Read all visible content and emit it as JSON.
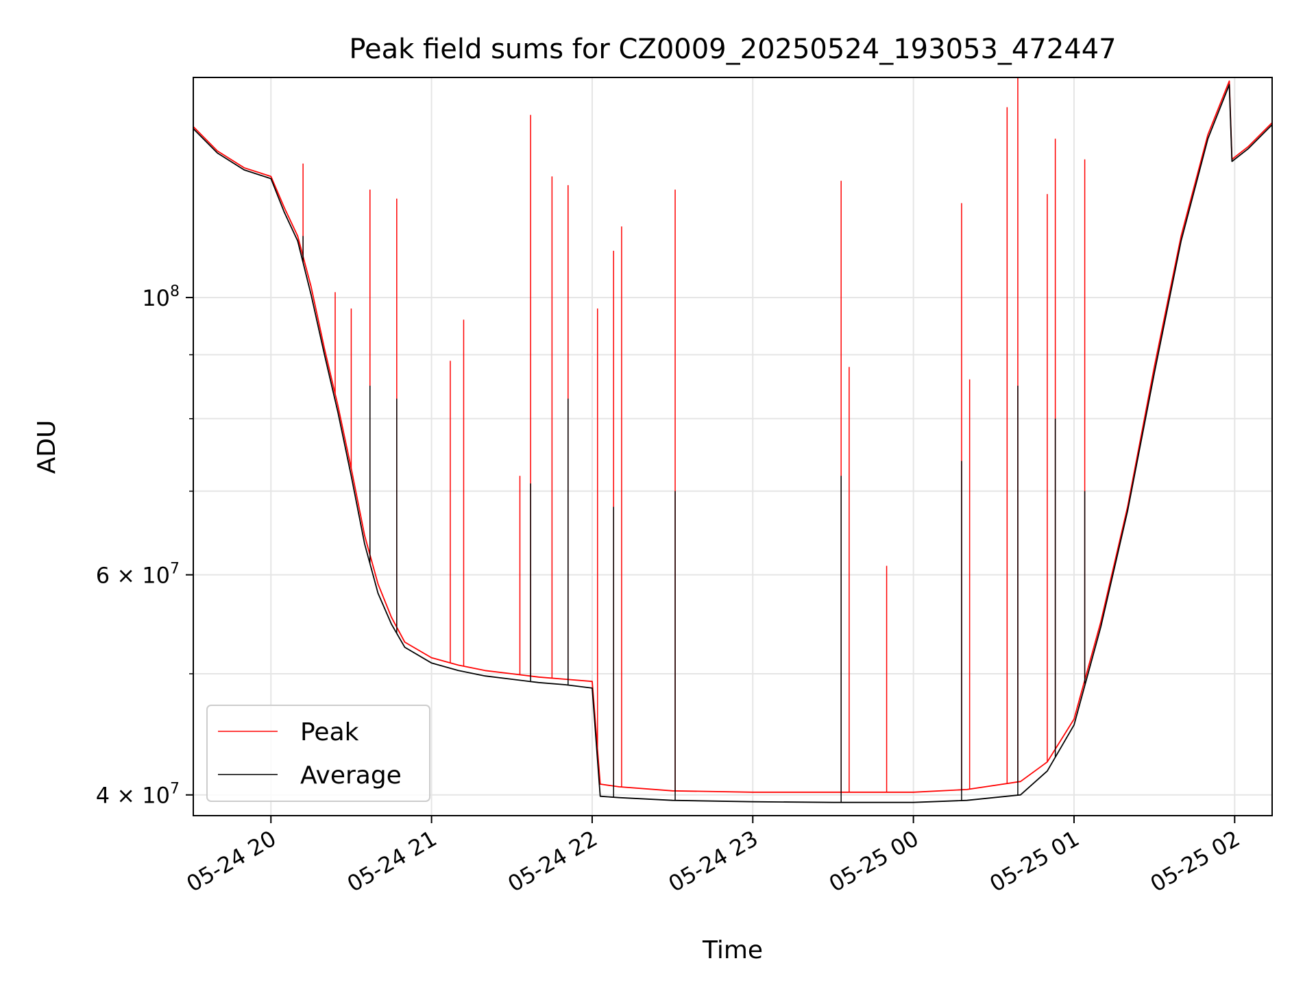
{
  "chart_data": {
    "type": "line",
    "title": "Peak field sums for CZ0009_20250524_193053_472447",
    "xlabel": "Time",
    "ylabel": "ADU",
    "y_scale": "log",
    "xlim": [
      "2025-05-24 19:31",
      "2025-05-25 02:14"
    ],
    "ylim": [
      38500000,
      150000000
    ],
    "x_tick_labels": [
      "05-24 20",
      "05-24 21",
      "05-24 22",
      "05-24 23",
      "05-25 00",
      "05-25 01",
      "05-25 02"
    ],
    "x_ticks": [
      "2025-05-24 20:00",
      "2025-05-24 21:00",
      "2025-05-24 22:00",
      "2025-05-24 23:00",
      "2025-05-25 00:00",
      "2025-05-25 01:00",
      "2025-05-25 02:00"
    ],
    "y_tick_labels": [
      {
        "value": 100000000,
        "mantissa": "",
        "exp": "8"
      },
      {
        "value": 60000000,
        "mantissa": "6",
        "exp": "7"
      },
      {
        "value": 40000000,
        "mantissa": "4",
        "exp": "7"
      }
    ],
    "grid": true,
    "legend_position": "lower-left",
    "series": [
      {
        "name": "Peak",
        "color": "#ff0000",
        "x": [
          "2025-05-24 19:31",
          "2025-05-24 19:40",
          "2025-05-24 19:50",
          "2025-05-24 20:00",
          "2025-05-24 20:05",
          "2025-05-24 20:10",
          "2025-05-24 20:15",
          "2025-05-24 20:20",
          "2025-05-24 20:25",
          "2025-05-24 20:30",
          "2025-05-24 20:35",
          "2025-05-24 20:40",
          "2025-05-24 20:45",
          "2025-05-24 20:50",
          "2025-05-24 21:00",
          "2025-05-24 21:10",
          "2025-05-24 21:20",
          "2025-05-24 21:30",
          "2025-05-24 21:40",
          "2025-05-24 21:50",
          "2025-05-24 22:00",
          "2025-05-24 22:03",
          "2025-05-24 22:10",
          "2025-05-24 22:30",
          "2025-05-24 23:00",
          "2025-05-24 23:30",
          "2025-05-25 00:00",
          "2025-05-25 00:20",
          "2025-05-25 00:40",
          "2025-05-25 00:50",
          "2025-05-25 01:00",
          "2025-05-25 01:10",
          "2025-05-25 01:20",
          "2025-05-25 01:30",
          "2025-05-25 01:40",
          "2025-05-25 01:50",
          "2025-05-25 01:58",
          "2025-05-25 01:59",
          "2025-05-25 02:05",
          "2025-05-25 02:14"
        ],
        "y": [
          137000000,
          131000000,
          127000000,
          125000000,
          118000000,
          112000000,
          102000000,
          91000000,
          82000000,
          73000000,
          64500000,
          59000000,
          55500000,
          53000000,
          51500000,
          50800000,
          50300000,
          50000000,
          49700000,
          49500000,
          49300000,
          40800000,
          40600000,
          40300000,
          40200000,
          40200000,
          40200000,
          40400000,
          41000000,
          42500000,
          46000000,
          55000000,
          68000000,
          88000000,
          112000000,
          135000000,
          149000000,
          129000000,
          132000000,
          138000000
        ],
        "spikes": [
          {
            "x": "2025-05-24 20:12",
            "y": 128000000
          },
          {
            "x": "2025-05-24 20:24",
            "y": 101000000
          },
          {
            "x": "2025-05-24 20:30",
            "y": 98000000
          },
          {
            "x": "2025-05-24 20:37",
            "y": 122000000
          },
          {
            "x": "2025-05-24 20:47",
            "y": 120000000
          },
          {
            "x": "2025-05-24 21:07",
            "y": 89000000
          },
          {
            "x": "2025-05-24 21:12",
            "y": 96000000
          },
          {
            "x": "2025-05-24 21:33",
            "y": 72000000
          },
          {
            "x": "2025-05-24 21:37",
            "y": 140000000
          },
          {
            "x": "2025-05-24 21:45",
            "y": 125000000
          },
          {
            "x": "2025-05-24 21:51",
            "y": 123000000
          },
          {
            "x": "2025-05-24 22:02",
            "y": 98000000
          },
          {
            "x": "2025-05-24 22:08",
            "y": 109000000
          },
          {
            "x": "2025-05-24 22:11",
            "y": 114000000
          },
          {
            "x": "2025-05-24 22:31",
            "y": 122000000
          },
          {
            "x": "2025-05-24 23:33",
            "y": 124000000
          },
          {
            "x": "2025-05-24 23:36",
            "y": 88000000
          },
          {
            "x": "2025-05-24 23:50",
            "y": 61000000
          },
          {
            "x": "2025-05-25 00:18",
            "y": 119000000
          },
          {
            "x": "2025-05-25 00:21",
            "y": 86000000
          },
          {
            "x": "2025-05-25 00:35",
            "y": 142000000
          },
          {
            "x": "2025-05-25 00:39",
            "y": 150000000
          },
          {
            "x": "2025-05-25 00:50",
            "y": 121000000
          },
          {
            "x": "2025-05-25 00:53",
            "y": 134000000
          },
          {
            "x": "2025-05-25 01:04",
            "y": 129000000
          }
        ]
      },
      {
        "name": "Average",
        "color": "#000000",
        "x": [
          "2025-05-24 19:31",
          "2025-05-24 19:40",
          "2025-05-24 19:50",
          "2025-05-24 20:00",
          "2025-05-24 20:05",
          "2025-05-24 20:10",
          "2025-05-24 20:15",
          "2025-05-24 20:20",
          "2025-05-24 20:25",
          "2025-05-24 20:30",
          "2025-05-24 20:35",
          "2025-05-24 20:40",
          "2025-05-24 20:45",
          "2025-05-24 20:50",
          "2025-05-24 21:00",
          "2025-05-24 21:10",
          "2025-05-24 21:20",
          "2025-05-24 21:30",
          "2025-05-24 21:40",
          "2025-05-24 21:50",
          "2025-05-24 22:00",
          "2025-05-24 22:03",
          "2025-05-24 22:10",
          "2025-05-24 22:30",
          "2025-05-24 23:00",
          "2025-05-24 23:30",
          "2025-05-25 00:00",
          "2025-05-25 00:20",
          "2025-05-25 00:40",
          "2025-05-25 00:50",
          "2025-05-25 01:00",
          "2025-05-25 01:10",
          "2025-05-25 01:20",
          "2025-05-25 01:30",
          "2025-05-25 01:40",
          "2025-05-25 01:50",
          "2025-05-25 01:58",
          "2025-05-25 01:59",
          "2025-05-25 02:05",
          "2025-05-25 02:14"
        ],
        "y": [
          136500000,
          130500000,
          126500000,
          124500000,
          117000000,
          111000000,
          100500000,
          90000000,
          81000000,
          72000000,
          63500000,
          58000000,
          54800000,
          52500000,
          51000000,
          50300000,
          49800000,
          49500000,
          49200000,
          49000000,
          48700000,
          39900000,
          39800000,
          39600000,
          39500000,
          39450000,
          39450000,
          39600000,
          40000000,
          41800000,
          45500000,
          54500000,
          67500000,
          87000000,
          111000000,
          134000000,
          148000000,
          128500000,
          131500000,
          137500000
        ],
        "spikes": [
          {
            "x": "2025-05-24 20:12",
            "y": 112000000
          },
          {
            "x": "2025-05-24 20:37",
            "y": 85000000
          },
          {
            "x": "2025-05-24 20:47",
            "y": 83000000
          },
          {
            "x": "2025-05-24 21:37",
            "y": 71000000
          },
          {
            "x": "2025-05-24 21:51",
            "y": 83000000
          },
          {
            "x": "2025-05-24 22:08",
            "y": 68000000
          },
          {
            "x": "2025-05-24 22:31",
            "y": 70000000
          },
          {
            "x": "2025-05-24 23:33",
            "y": 72000000
          },
          {
            "x": "2025-05-25 00:18",
            "y": 74000000
          },
          {
            "x": "2025-05-25 00:39",
            "y": 85000000
          },
          {
            "x": "2025-05-25 00:53",
            "y": 80000000
          },
          {
            "x": "2025-05-25 01:04",
            "y": 70000000
          }
        ]
      }
    ]
  }
}
